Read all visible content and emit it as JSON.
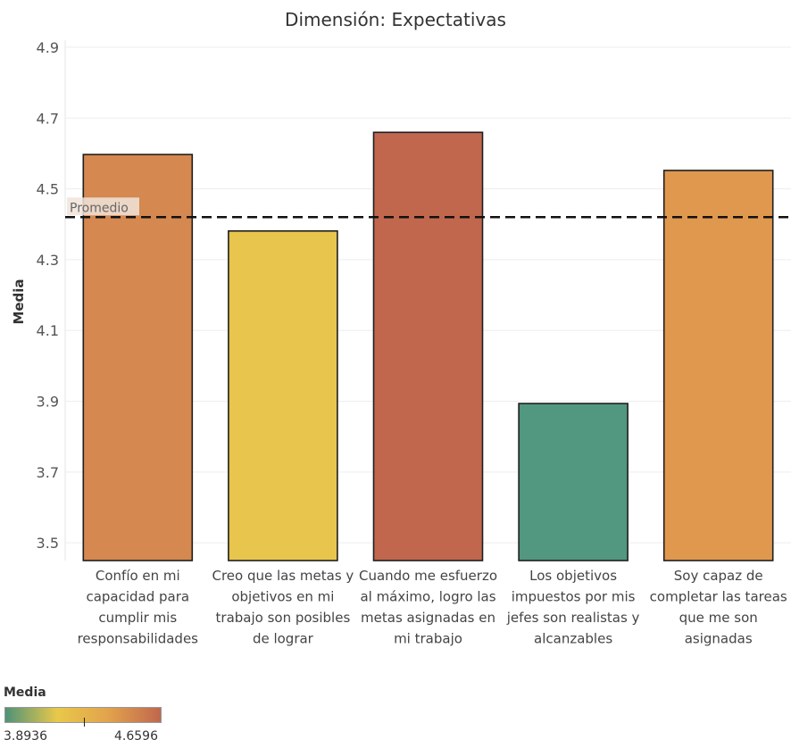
{
  "chart_data": {
    "type": "bar",
    "title": "Dimensión: Expectativas",
    "xlabel": "",
    "ylabel": "Media",
    "ylim": [
      3.45,
      4.92
    ],
    "yticks": [
      3.5,
      3.7,
      3.9,
      4.1,
      4.3,
      4.5,
      4.7,
      4.9
    ],
    "categories": [
      [
        "Confío en mi",
        "capacidad para",
        "cumplir mis",
        "responsabilidades"
      ],
      [
        "Creo que las metas y",
        "objetivos en mi",
        "trabajo son posibles",
        "de lograr"
      ],
      [
        "Cuando me esfuerzo",
        "al máximo, logro las",
        "metas asignadas en",
        "mi trabajo"
      ],
      [
        "Los objetivos",
        "impuestos por mis",
        "jefes son realistas y",
        "alcanzables"
      ],
      [
        "Soy capaz de",
        "completar las tareas",
        "que me son",
        "asignadas"
      ]
    ],
    "values": [
      4.597,
      4.381,
      4.6596,
      3.8936,
      4.552
    ],
    "bar_colors": [
      "#d5884f",
      "#e8c54d",
      "#c0674e",
      "#52977f",
      "#df984e"
    ],
    "reference_line": {
      "label": "Promedio",
      "value": 4.42,
      "style": "dashed"
    },
    "grid": true,
    "legend": {
      "title": "Media",
      "min_label": "3.8936",
      "max_label": "4.6596",
      "colors": [
        "#4f9278",
        "#e8c84a",
        "#e2a24c",
        "#c0674e"
      ],
      "placement": "bottom-left"
    }
  }
}
